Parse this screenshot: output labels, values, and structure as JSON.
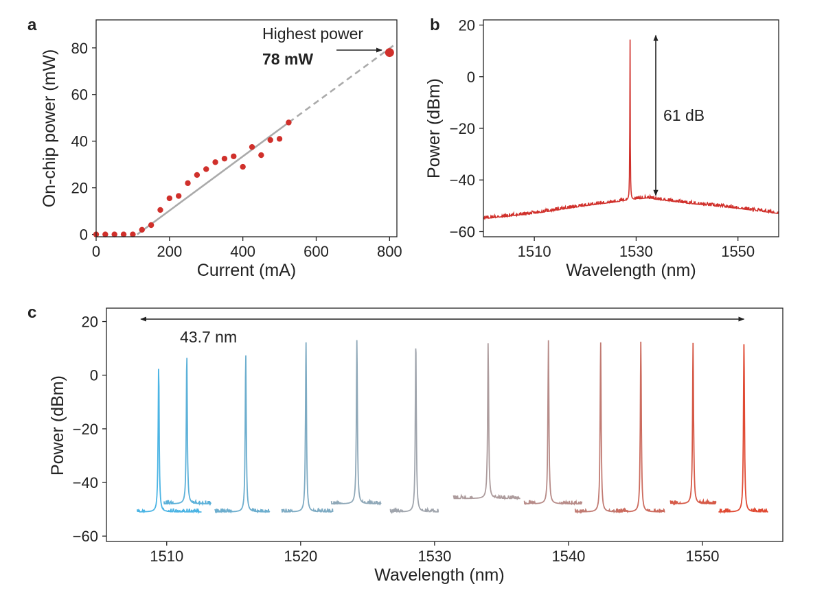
{
  "colors": {
    "red": "#d0302b",
    "fit": "#aaaaaa",
    "black": "#222222",
    "scan_start": "#4bb4e4",
    "scan_mid": "#a8a4a8",
    "scan_end": "#e04a33"
  },
  "chart_data": [
    {
      "panel": "a",
      "type": "scatter",
      "xlabel": "Current (mA)",
      "ylabel": "On-chip power (mW)",
      "xlim": [
        0,
        820
      ],
      "ylim": [
        -1,
        92
      ],
      "xticks": [
        0,
        200,
        400,
        600,
        800
      ],
      "yticks": [
        0,
        20,
        40,
        60,
        80
      ],
      "points": [
        [
          0,
          0
        ],
        [
          25,
          0
        ],
        [
          50,
          0
        ],
        [
          75,
          0
        ],
        [
          100,
          0
        ],
        [
          125,
          2
        ],
        [
          150,
          4
        ],
        [
          175,
          10.5
        ],
        [
          200,
          15.5
        ],
        [
          225,
          16.5
        ],
        [
          250,
          22
        ],
        [
          275,
          25.5
        ],
        [
          300,
          28
        ],
        [
          325,
          31
        ],
        [
          350,
          32.5
        ],
        [
          375,
          33.5
        ],
        [
          400,
          29
        ],
        [
          425,
          37.5
        ],
        [
          450,
          34
        ],
        [
          475,
          40.5
        ],
        [
          500,
          41
        ],
        [
          525,
          48
        ]
      ],
      "highlight_point": [
        800,
        78
      ],
      "fit_solid": [
        [
          112,
          0
        ],
        [
          525,
          48
        ]
      ],
      "fit_dashed": [
        [
          525,
          48
        ],
        [
          815,
          81.5
        ]
      ],
      "annotation_title": "Highest power",
      "annotation_value": "78 mW"
    },
    {
      "panel": "b",
      "type": "line",
      "xlabel": "Wavelength (nm)",
      "ylabel": "Power (dBm)",
      "xlim": [
        1500,
        1558
      ],
      "ylim": [
        -62,
        22
      ],
      "xticks": [
        1510,
        1530,
        1550
      ],
      "yticks": [
        20,
        0,
        -20,
        -40,
        -60
      ],
      "peak_wavelength": 1528.8,
      "peak_power": 15.5,
      "noise_floor_points": [
        [
          1500,
          -55
        ],
        [
          1510,
          -53
        ],
        [
          1520,
          -50
        ],
        [
          1528,
          -48
        ],
        [
          1532,
          -47
        ],
        [
          1540,
          -49
        ],
        [
          1550,
          -51
        ],
        [
          1558,
          -53
        ]
      ],
      "arrow_range": [
        -46,
        16
      ],
      "annotation": "61 dB"
    },
    {
      "panel": "c",
      "type": "line",
      "xlabel": "Wavelength (nm)",
      "ylabel": "Power (dBm)",
      "xlim": [
        1505.5,
        1556
      ],
      "ylim": [
        -62,
        25
      ],
      "xticks": [
        1510,
        1520,
        1530,
        1540,
        1550
      ],
      "yticks": [
        20,
        0,
        -20,
        -40,
        -60
      ],
      "series": [
        {
          "peak": 1509.4,
          "power": 5.0,
          "range": [
            1507.8,
            1512.6
          ]
        },
        {
          "peak": 1511.5,
          "power": 7.5,
          "range": [
            1509.8,
            1513.3
          ]
        },
        {
          "peak": 1515.9,
          "power": 8.5,
          "range": [
            1513.6,
            1517.7
          ]
        },
        {
          "peak": 1520.4,
          "power": 13.0,
          "range": [
            1518.6,
            1522.4
          ]
        },
        {
          "peak": 1524.2,
          "power": 13.5,
          "range": [
            1522.3,
            1526.0
          ]
        },
        {
          "peak": 1528.6,
          "power": 13.0,
          "range": [
            1526.7,
            1530.3
          ]
        },
        {
          "peak": 1534.0,
          "power": 13.0,
          "range": [
            1531.4,
            1536.4
          ]
        },
        {
          "peak": 1538.5,
          "power": 13.0,
          "range": [
            1536.7,
            1541.0
          ]
        },
        {
          "peak": 1542.4,
          "power": 12.5,
          "range": [
            1540.5,
            1544.0
          ]
        },
        {
          "peak": 1545.4,
          "power": 12.5,
          "range": [
            1543.6,
            1547.2
          ]
        },
        {
          "peak": 1549.3,
          "power": 12.0,
          "range": [
            1547.6,
            1551.0
          ]
        },
        {
          "peak": 1553.1,
          "power": 12.0,
          "range": [
            1551.2,
            1554.9
          ]
        }
      ],
      "span_range": [
        1509.4,
        1553.1
      ],
      "annotation": "43.7 nm"
    }
  ]
}
